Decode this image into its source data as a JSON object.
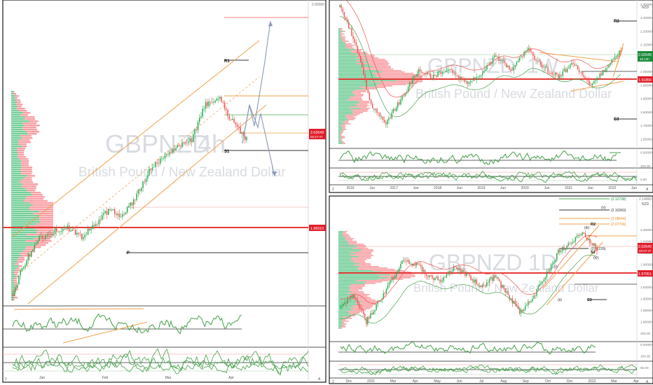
{
  "symbol": "GBPNZD",
  "description": "British Pound / New Zealand Dollar",
  "colors": {
    "up": "#26a69a",
    "up_bright": "#22ab4a",
    "down": "#ef5350",
    "orange": "#f0a04b",
    "red_line": "#e53935",
    "profile_green": "#5cc586",
    "profile_red": "#f77f86",
    "osc_green": "#43a047",
    "osc_red": "#e53935",
    "label_green": "#1b8b3a",
    "label_red": "#e11d2b",
    "border": "#1c1c1c",
    "text": "#555555",
    "watermark": "#d8dbe0"
  },
  "panels": {
    "left": {
      "title_suffix": "4h",
      "price_labels": {
        "top": "2.05000",
        "last": "2.02649",
        "last_time": "03:27:47",
        "support": "1.98310"
      },
      "annotations": [
        "R1",
        "S1",
        "P"
      ],
      "x_axis": [
        "Jan",
        "Feb",
        "Mar",
        "Apr"
      ],
      "bottom_labels": [
        "2",
        "A"
      ]
    },
    "top_right": {
      "title_suffix": "1W",
      "ccy": "NZD",
      "price_labels": {
        "last": "2.02649",
        "last_time": "4d 12h",
        "support": "1.91856",
        "ticks": [
          "2.30000",
          "2.25000",
          "2.20000",
          "2.15000",
          "2.10000",
          "2.05000",
          "1.95000",
          "1.85000",
          "1.80000",
          "1.75000",
          "1.65000",
          "0.00000",
          "100.00",
          "0.00"
        ]
      },
      "annotations": [
        "R3",
        "S3"
      ],
      "x_axis": [
        "2016",
        "Jun",
        "2017",
        "Jun",
        "2018",
        "Jun",
        "2019",
        "Jun",
        "2020",
        "Jun",
        "2021",
        "Jun",
        "2022",
        "Jun"
      ],
      "bottom_labels": [
        "2",
        "A"
      ]
    },
    "bottom_right": {
      "title_suffix": "1D",
      "ccy": "NZD",
      "fib_labels": [
        "(2.12738)",
        "(2.10260)",
        "(2.08644)",
        "(2.07796)",
        "(2.02239)"
      ],
      "wave_labels": [
        "(v)",
        "(iii)",
        "(i)",
        "(ii)",
        "(iv)",
        "R2",
        "S2",
        "S3"
      ],
      "price_labels": {
        "top": "2.14000",
        "last": "2.02649",
        "last_time": "03:27:47",
        "support": "1.97051",
        "ticks": [
          "2.06000",
          "2.04000",
          "1.98000",
          "1.96000",
          "1.94000",
          "1.92000",
          "1.90000",
          "1.88000",
          "1.86000",
          "100.00",
          "0.00000",
          "100.00",
          "50.00"
        ]
      },
      "x_axis": [
        "Dec",
        "2021",
        "Mar",
        "Apr",
        "May",
        "Jun",
        "Jul",
        "Aug",
        "Sep",
        "Oct",
        "Dec",
        "2022",
        "Mar",
        "Apr"
      ],
      "bottom_labels": [
        "2",
        "A"
      ]
    }
  }
}
